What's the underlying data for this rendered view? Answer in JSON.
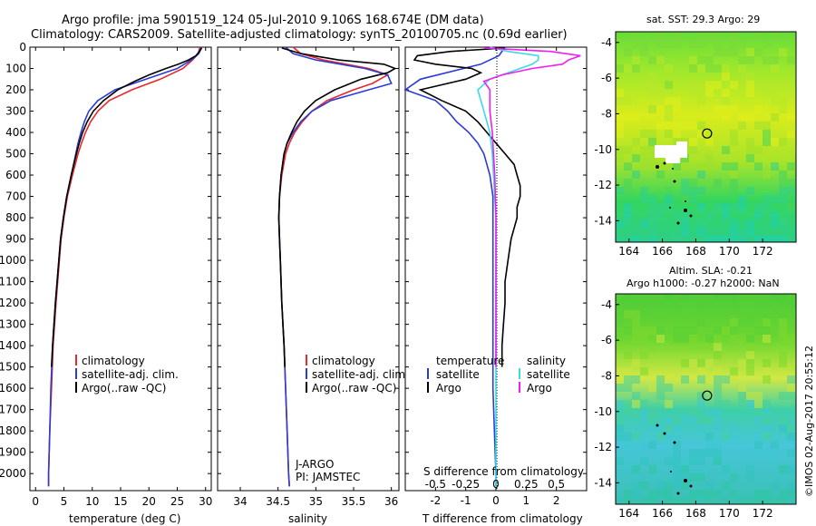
{
  "header": {
    "line1": "Argo profile: jma 5901519_124 05-Jul-2010 9.106S 168.674E (DM data)",
    "line2": "Climatology: CARS2009. Satellite-adjusted climatology: synTS_20100705.nc (0.69d earlier)"
  },
  "colors": {
    "climatology": "#e8282a",
    "satellite": "#2b3bd6",
    "argo": "#000000",
    "sat_salinity": "#39dbe6",
    "argo_salinity": "#f01ef0"
  },
  "chart_data": [
    {
      "id": "temperature",
      "type": "line",
      "xlabel": "temperature (deg C)",
      "xlim": [
        -1,
        31
      ],
      "ylim": [
        2080,
        0
      ],
      "xticks": [
        0,
        5,
        10,
        15,
        20,
        25,
        30
      ],
      "yticks": [
        0,
        100,
        200,
        300,
        400,
        500,
        600,
        700,
        800,
        900,
        1000,
        1100,
        1200,
        1300,
        1400,
        1500,
        1600,
        1700,
        1800,
        1900,
        2000
      ],
      "legend": [
        "climatology",
        "satellite-adj. clim.",
        "Argo(..raw -QC)"
      ],
      "series": [
        {
          "name": "climatology",
          "color": "#e8282a",
          "depth": [
            0,
            30,
            60,
            100,
            150,
            200,
            250,
            300,
            350,
            400,
            450,
            500,
            550,
            600,
            700,
            800,
            900,
            1000,
            1200,
            1400,
            1600,
            1800,
            2000,
            2060
          ],
          "values": [
            29.0,
            28.7,
            27.7,
            26.0,
            22.0,
            17.0,
            13.0,
            11.0,
            9.7,
            8.8,
            8.1,
            7.5,
            7.0,
            6.5,
            5.6,
            5.0,
            4.5,
            4.2,
            3.6,
            3.1,
            2.8,
            2.5,
            2.3,
            2.3
          ]
        },
        {
          "name": "satellite-adj. clim.",
          "color": "#2b3bd6",
          "depth": [
            0,
            30,
            60,
            100,
            150,
            200,
            250,
            300,
            350,
            400,
            450,
            500,
            550,
            600,
            700,
            800,
            900,
            1000,
            1200,
            1400,
            1600,
            1800,
            2000,
            2060
          ],
          "values": [
            29.3,
            28.8,
            27.5,
            25.0,
            19.5,
            14.0,
            11.0,
            9.4,
            8.6,
            8.0,
            7.5,
            7.1,
            6.7,
            6.3,
            5.5,
            4.9,
            4.4,
            4.1,
            3.5,
            3.0,
            2.7,
            2.5,
            2.3,
            2.3
          ]
        },
        {
          "name": "Argo(..raw -QC)",
          "color": "#000000",
          "depth": [
            4,
            20,
            40,
            60,
            80,
            100,
            130,
            160,
            200,
            250,
            300,
            350,
            400,
            450,
            500,
            600,
            700,
            800,
            900,
            1000,
            1200,
            1400,
            1500
          ],
          "values": [
            29.3,
            28.9,
            28.3,
            27.0,
            25.2,
            23.0,
            20.0,
            17.5,
            14.5,
            12.0,
            10.2,
            9.1,
            8.3,
            7.7,
            7.2,
            6.3,
            5.5,
            4.9,
            4.4,
            4.1,
            3.5,
            3.0,
            2.8
          ]
        }
      ]
    },
    {
      "id": "salinity",
      "type": "line",
      "xlabel": "salinity",
      "xlim": [
        33.7,
        36.1
      ],
      "ylim": [
        2080,
        0
      ],
      "xticks": [
        34,
        34.5,
        35,
        35.5,
        36
      ],
      "legend": [
        "climatology",
        "satellite-adj. clim.",
        "Argo(..raw -QC)"
      ],
      "annotation": [
        "J-ARGO",
        "PI: JAMSTEC"
      ],
      "series": [
        {
          "name": "climatology",
          "color": "#e8282a",
          "depth": [
            0,
            30,
            60,
            100,
            130,
            170,
            200,
            250,
            300,
            350,
            400,
            450,
            500,
            600,
            700,
            800,
            900,
            1000,
            1200,
            1400,
            1600,
            1800,
            2000,
            2060
          ],
          "values": [
            34.7,
            34.8,
            35.1,
            35.7,
            35.95,
            35.75,
            35.5,
            35.15,
            34.95,
            34.82,
            34.72,
            34.65,
            34.6,
            34.55,
            34.52,
            34.51,
            34.52,
            34.53,
            34.55,
            34.58,
            34.6,
            34.62,
            34.64,
            34.65
          ]
        },
        {
          "name": "satellite-adj. clim.",
          "color": "#2b3bd6",
          "depth": [
            0,
            30,
            60,
            100,
            130,
            170,
            200,
            250,
            300,
            350,
            400,
            450,
            500,
            600,
            700,
            800,
            900,
            1000,
            1200,
            1400,
            1600,
            1800,
            2000,
            2060
          ],
          "values": [
            34.6,
            34.7,
            35.0,
            35.65,
            35.95,
            36.0,
            35.7,
            35.2,
            34.95,
            34.8,
            34.7,
            34.62,
            34.58,
            34.54,
            34.52,
            34.51,
            34.52,
            34.53,
            34.55,
            34.58,
            34.6,
            34.62,
            34.64,
            34.65
          ]
        },
        {
          "name": "Argo(..raw -QC)",
          "color": "#000000",
          "depth": [
            4,
            30,
            60,
            80,
            100,
            120,
            150,
            200,
            250,
            300,
            350,
            400,
            450,
            500,
            600,
            700,
            800,
            900,
            1000,
            1200,
            1400,
            1500
          ],
          "values": [
            34.55,
            34.8,
            35.3,
            35.9,
            36.05,
            35.95,
            35.6,
            35.25,
            35.0,
            34.85,
            34.75,
            34.68,
            34.62,
            34.58,
            34.54,
            34.52,
            34.51,
            34.52,
            34.53,
            34.55,
            34.58,
            34.59
          ]
        }
      ]
    },
    {
      "id": "differences",
      "type": "line",
      "xlabel": "T difference from climatology",
      "xlabel2": "S difference from climatology",
      "xlim": [
        -3,
        3
      ],
      "ylim": [
        2080,
        0
      ],
      "xticks": [
        -2,
        -1,
        0,
        1,
        2
      ],
      "xticks2": [
        -0.5,
        -0.25,
        0,
        0.25,
        0.5
      ],
      "xticks2_labels": [
        "-0.5",
        "-0.25",
        "0",
        "0.25",
        "0.5"
      ],
      "legend": {
        "temperature_head": "temperature",
        "salinity_head": "salinity",
        "satellite": "satellite",
        "argo": "Argo"
      },
      "series": [
        {
          "name": "T satellite",
          "color": "#2b3bd6",
          "depth": [
            0,
            40,
            80,
            150,
            200,
            250,
            300,
            350,
            400,
            450,
            500,
            550,
            600,
            700,
            800,
            900,
            1000,
            1200,
            1400,
            1600,
            1800,
            2000,
            2060
          ],
          "values": [
            0.3,
            0.1,
            -0.5,
            -2.5,
            -3.0,
            -2.0,
            -1.6,
            -1.3,
            -0.9,
            -0.6,
            -0.4,
            -0.3,
            -0.2,
            -0.1,
            -0.1,
            -0.1,
            -0.1,
            -0.1,
            -0.1,
            -0.1,
            -0.05,
            0,
            0
          ]
        },
        {
          "name": "T Argo",
          "color": "#000000",
          "depth": [
            4,
            20,
            40,
            60,
            80,
            100,
            120,
            150,
            200,
            250,
            300,
            350,
            400,
            450,
            500,
            550,
            600,
            650,
            700,
            750,
            800,
            850,
            900,
            1000,
            1100,
            1200,
            1300,
            1400,
            1500
          ],
          "values": [
            0.3,
            -1.5,
            -2.6,
            -2.7,
            -2.0,
            -0.8,
            -0.5,
            -1.0,
            -2.5,
            -1.8,
            -1.0,
            -0.6,
            -0.3,
            0.0,
            0.3,
            0.6,
            0.7,
            0.8,
            0.8,
            0.7,
            0.7,
            0.6,
            0.5,
            0.4,
            0.3,
            0.3,
            0.25,
            0.2,
            0.2
          ]
        },
        {
          "name": "S satellite",
          "color": "#39dbe6",
          "depth": [
            0,
            20,
            40,
            60,
            80,
            100,
            150,
            200,
            300,
            400,
            500,
            600,
            800,
            1000,
            1200,
            1400,
            1600,
            1800,
            2000,
            2060
          ],
          "values": [
            -0.05,
            0.1,
            0.35,
            0.35,
            0.3,
            0.2,
            -0.05,
            -0.15,
            -0.1,
            -0.05,
            -0.03,
            -0.02,
            0,
            0,
            0,
            0,
            0,
            0,
            0,
            0
          ]
        },
        {
          "name": "S Argo",
          "color": "#f01ef0",
          "depth": [
            4,
            20,
            40,
            60,
            80,
            100,
            130,
            160,
            200,
            300,
            400,
            500,
            600,
            800,
            1000,
            1200,
            1400,
            1500
          ],
          "values": [
            -0.1,
            0.45,
            0.7,
            0.6,
            0.55,
            0.3,
            0.05,
            -0.1,
            -0.05,
            -0.05,
            -0.03,
            -0.02,
            -0.01,
            0,
            0,
            0,
            0,
            0
          ]
        }
      ]
    },
    {
      "id": "sst_map",
      "type": "heatmap",
      "title": "sat. SST: 29.3 Argo: 29",
      "xlim": [
        163.2,
        174.0
      ],
      "ylim": [
        -15.2,
        -3.4
      ],
      "xticks": [
        164,
        166,
        168,
        170,
        172
      ],
      "yticks": [
        -4,
        -6,
        -8,
        -10,
        -12,
        -14
      ],
      "float_lon": 168.674,
      "float_lat": -9.106
    },
    {
      "id": "sla_map",
      "type": "heatmap",
      "title": "Altim. SLA: -0.21",
      "subtitle": "Argo h1000: -0.27 h2000: NaN",
      "xlim": [
        163.2,
        174.0
      ],
      "ylim": [
        -15.2,
        -3.4
      ],
      "xticks": [
        164,
        166,
        168,
        170,
        172
      ],
      "yticks": [
        -4,
        -6,
        -8,
        -10,
        -12,
        -14
      ],
      "float_lon": 168.674,
      "float_lat": -9.106
    }
  ],
  "watermark": "©IMOS 02-Aug-2017 20:55:12"
}
